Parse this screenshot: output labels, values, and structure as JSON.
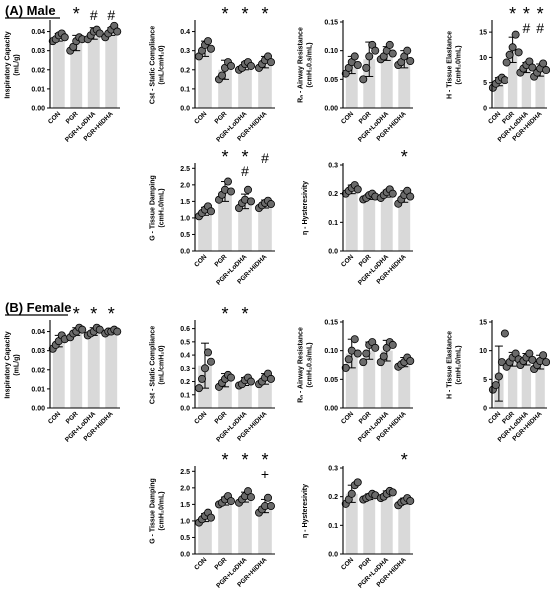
{
  "sections": [
    {
      "label": "(A) Male"
    },
    {
      "label": "(B) Female"
    }
  ],
  "style": {
    "bar_color": "#d9d9d9",
    "dot_color": "#6b6b6b",
    "marker_color": "#000000"
  },
  "chart_data": [
    {
      "type": "bar",
      "section": 0,
      "ylabel": "Inspiratory Capacity\n(mL/g)",
      "yticks": [
        "0.00",
        "0.01",
        "0.02",
        "0.03",
        "0.04"
      ],
      "ylim": [
        0,
        0.045
      ],
      "categories": [
        "CON",
        "PGR",
        "PGR+LoDHA",
        "PGR+HiDHA"
      ],
      "values": [
        0.037,
        0.034,
        0.039,
        0.04
      ],
      "errors": [
        0.002,
        0.004,
        0.003,
        0.002
      ],
      "points": [
        [
          0.035,
          0.036,
          0.038,
          0.039,
          0.037
        ],
        [
          0.03,
          0.032,
          0.035,
          0.037,
          0.036
        ],
        [
          0.036,
          0.038,
          0.04,
          0.041,
          0.039
        ],
        [
          0.037,
          0.039,
          0.041,
          0.043,
          0.04
        ]
      ],
      "markers": [
        "",
        "*",
        "#",
        "#"
      ]
    },
    {
      "type": "bar",
      "section": 0,
      "ylabel": "Cst - Static Compliance\n(mL/cmH₂0)",
      "yticks": [
        "0.0",
        "0.1",
        "0.2",
        "0.3",
        "0.4"
      ],
      "ylim": [
        0,
        0.45
      ],
      "categories": [
        "CON",
        "PGR",
        "PGR+LoDHA",
        "PGR+HiDHA"
      ],
      "values": [
        0.31,
        0.2,
        0.22,
        0.24
      ],
      "errors": [
        0.04,
        0.05,
        0.02,
        0.03
      ],
      "points": [
        [
          0.27,
          0.3,
          0.33,
          0.35,
          0.31
        ],
        [
          0.15,
          0.17,
          0.21,
          0.24,
          0.22
        ],
        [
          0.2,
          0.21,
          0.23,
          0.24,
          0.22
        ],
        [
          0.21,
          0.23,
          0.25,
          0.27,
          0.24
        ]
      ],
      "markers": [
        "",
        "*",
        "*",
        "*"
      ]
    },
    {
      "type": "bar",
      "section": 0,
      "ylabel": "Rₙ - Airway Resistance\n(cmH₂0.s/mL)",
      "yticks": [
        "0.00",
        "0.05",
        "0.10",
        "0.15"
      ],
      "ylim": [
        0,
        0.15
      ],
      "categories": [
        "CON",
        "PGR",
        "PGR+LoDHA",
        "PGR+HiDHA"
      ],
      "values": [
        0.075,
        0.085,
        0.095,
        0.085
      ],
      "errors": [
        0.015,
        0.03,
        0.012,
        0.015
      ],
      "points": [
        [
          0.06,
          0.07,
          0.08,
          0.09,
          0.075
        ],
        [
          0.05,
          0.07,
          0.09,
          0.11,
          0.1
        ],
        [
          0.085,
          0.09,
          0.1,
          0.11,
          0.095
        ],
        [
          0.075,
          0.08,
          0.09,
          0.1,
          0.082
        ]
      ],
      "markers": [
        "",
        "",
        "",
        ""
      ]
    },
    {
      "type": "bar",
      "section": 0,
      "ylabel": "H - Tissue Elastance\n(cmH₂0/mL)",
      "yticks": [
        "0",
        "5",
        "10",
        "15"
      ],
      "ylim": [
        0,
        17
      ],
      "categories": [
        "CON",
        "PGR",
        "PGR+LoDHA",
        "PGR+HiDHA"
      ],
      "values": [
        5.2,
        11.5,
        8.0,
        7.5
      ],
      "errors": [
        0.8,
        2.5,
        1.0,
        1.2
      ],
      "points": [
        [
          4.0,
          4.8,
          5.5,
          6.0,
          5.5
        ],
        [
          9.0,
          10.5,
          12.0,
          14.5,
          11.0
        ],
        [
          7.0,
          7.8,
          8.5,
          9.2,
          8.0
        ],
        [
          6.2,
          7.0,
          7.8,
          8.8,
          7.5
        ]
      ],
      "markers": [
        "",
        "*",
        "*\n#",
        "*\n#"
      ]
    },
    {
      "type": "bar",
      "section": 0,
      "ylabel": "G - Tissue Damping\n(cmH₂0/mL)",
      "yticks": [
        "0.0",
        "0.5",
        "1.0",
        "1.5",
        "2.0",
        "2.5"
      ],
      "ylim": [
        0,
        2.6
      ],
      "categories": [
        "CON",
        "PGR",
        "PGR+LoDHA",
        "PGR+HiDHA"
      ],
      "values": [
        1.2,
        1.8,
        1.5,
        1.42
      ],
      "errors": [
        0.12,
        0.3,
        0.22,
        0.12
      ],
      "points": [
        [
          1.05,
          1.15,
          1.25,
          1.35,
          1.2
        ],
        [
          1.55,
          1.7,
          1.85,
          2.1,
          1.8
        ],
        [
          1.3,
          1.45,
          1.55,
          1.85,
          1.5
        ],
        [
          1.3,
          1.38,
          1.45,
          1.52,
          1.42
        ]
      ],
      "markers": [
        "",
        "*",
        "*\n#",
        "#"
      ]
    },
    {
      "type": "bar",
      "section": 0,
      "ylabel": "η - Hysteresivity",
      "yticks": [
        "0.0",
        "0.1",
        "0.2",
        "0.3"
      ],
      "ylim": [
        0,
        0.3
      ],
      "categories": [
        "CON",
        "PGR",
        "PGR+LoDHA",
        "PGR+HiDHA"
      ],
      "values": [
        0.215,
        0.19,
        0.2,
        0.19
      ],
      "errors": [
        0.015,
        0.01,
        0.012,
        0.02
      ],
      "points": [
        [
          0.2,
          0.21,
          0.22,
          0.23,
          0.215
        ],
        [
          0.18,
          0.185,
          0.195,
          0.2,
          0.19
        ],
        [
          0.185,
          0.195,
          0.205,
          0.215,
          0.2
        ],
        [
          0.165,
          0.18,
          0.195,
          0.21,
          0.19
        ]
      ],
      "markers": [
        "",
        "",
        "",
        "*"
      ]
    },
    {
      "type": "bar",
      "section": 1,
      "ylabel": "Inspiratory Capacity\n(mL/g)",
      "yticks": [
        "0.00",
        "0.01",
        "0.02",
        "0.03",
        "0.04"
      ],
      "ylim": [
        0,
        0.045
      ],
      "categories": [
        "CON",
        "PGR",
        "PGR+LoDHA",
        "PGR+HiDHA"
      ],
      "values": [
        0.035,
        0.04,
        0.04,
        0.04
      ],
      "errors": [
        0.003,
        0.002,
        0.002,
        0.001
      ],
      "points": [
        [
          0.031,
          0.033,
          0.035,
          0.038,
          0.036
        ],
        [
          0.037,
          0.039,
          0.04,
          0.042,
          0.041
        ],
        [
          0.038,
          0.039,
          0.04,
          0.042,
          0.041
        ],
        [
          0.039,
          0.04,
          0.04,
          0.041,
          0.04
        ]
      ],
      "markers": [
        "",
        "*",
        "*",
        "*"
      ]
    },
    {
      "type": "bar",
      "section": 1,
      "ylabel": "Cst - Static Compliance\n(mL/cmH₂0)",
      "yticks": [
        "0.0",
        "0.1",
        "0.2",
        "0.3",
        "0.4",
        "0.5",
        "0.6"
      ],
      "ylim": [
        0,
        0.65
      ],
      "categories": [
        "CON",
        "PGR",
        "PGR+LoDHA",
        "PGR+HiDHA"
      ],
      "values": [
        0.32,
        0.21,
        0.2,
        0.22
      ],
      "errors": [
        0.17,
        0.05,
        0.03,
        0.04
      ],
      "points": [
        [
          0.15,
          0.22,
          0.3,
          0.42,
          0.35
        ],
        [
          0.16,
          0.19,
          0.22,
          0.25,
          0.23
        ],
        [
          0.17,
          0.18,
          0.21,
          0.23,
          0.2
        ],
        [
          0.18,
          0.2,
          0.23,
          0.26,
          0.22
        ]
      ],
      "markers": [
        "",
        "*",
        "*",
        ""
      ]
    },
    {
      "type": "bar",
      "section": 1,
      "ylabel": "Rₙ - Airway Resistance\n(cmH₂0.s/mL)",
      "yticks": [
        "0.00",
        "0.05",
        "0.10",
        "0.15"
      ],
      "ylim": [
        0,
        0.15
      ],
      "categories": [
        "CON",
        "PGR",
        "PGR+LoDHA",
        "PGR+HiDHA"
      ],
      "values": [
        0.095,
        0.1,
        0.1,
        0.08
      ],
      "errors": [
        0.025,
        0.015,
        0.018,
        0.008
      ],
      "points": [
        [
          0.07,
          0.085,
          0.1,
          0.12,
          0.095
        ],
        [
          0.08,
          0.095,
          0.11,
          0.115,
          0.105
        ],
        [
          0.08,
          0.09,
          0.105,
          0.115,
          0.11
        ],
        [
          0.072,
          0.076,
          0.08,
          0.088,
          0.082
        ]
      ],
      "markers": [
        "",
        "",
        "",
        ""
      ]
    },
    {
      "type": "bar",
      "section": 1,
      "ylabel": "H - Tissue Elastance\n(cmH₂0/mL)",
      "yticks": [
        "0",
        "5",
        "10",
        "15"
      ],
      "ylim": [
        0,
        15
      ],
      "categories": [
        "CON",
        "PGR",
        "PGR+LoDHA",
        "PGR+HiDHA"
      ],
      "values": [
        6.0,
        8.5,
        8.5,
        8.0
      ],
      "errors": [
        4.8,
        1.2,
        1.0,
        1.2
      ],
      "points": [
        [
          3.2,
          4.0,
          5.5,
          8.0,
          13.0
        ],
        [
          7.2,
          8.0,
          8.8,
          9.5,
          8.5
        ],
        [
          7.5,
          8.2,
          8.8,
          9.5,
          8.4
        ],
        [
          6.8,
          7.5,
          8.2,
          9.2,
          8.0
        ]
      ],
      "markers": [
        "",
        "",
        "",
        ""
      ]
    },
    {
      "type": "bar",
      "section": 1,
      "ylabel": "G - Tissue Damping\n(cmH₂0/mL)",
      "yticks": [
        "0.0",
        "0.5",
        "1.0",
        "1.5",
        "2.0",
        "2.5"
      ],
      "ylim": [
        0,
        2.6
      ],
      "categories": [
        "CON",
        "PGR",
        "PGR+LoDHA",
        "PGR+HiDHA"
      ],
      "values": [
        1.1,
        1.6,
        1.72,
        1.45
      ],
      "errors": [
        0.12,
        0.12,
        0.15,
        0.2
      ],
      "points": [
        [
          0.95,
          1.05,
          1.15,
          1.25,
          1.1
        ],
        [
          1.5,
          1.55,
          1.65,
          1.75,
          1.6
        ],
        [
          1.55,
          1.65,
          1.75,
          1.9,
          1.72
        ],
        [
          1.25,
          1.35,
          1.45,
          1.7,
          1.45
        ]
      ],
      "markers": [
        "",
        "*",
        "*",
        "*\n+"
      ]
    },
    {
      "type": "bar",
      "section": 1,
      "ylabel": "η - Hysteresivity",
      "yticks": [
        "0.0",
        "0.1",
        "0.2",
        "0.3"
      ],
      "ylim": [
        0,
        0.3
      ],
      "categories": [
        "CON",
        "PGR",
        "PGR+LoDHA",
        "PGR+HiDHA"
      ],
      "values": [
        0.21,
        0.2,
        0.21,
        0.185
      ],
      "errors": [
        0.03,
        0.01,
        0.01,
        0.01
      ],
      "points": [
        [
          0.175,
          0.19,
          0.21,
          0.24,
          0.25
        ],
        [
          0.19,
          0.195,
          0.2,
          0.21,
          0.205
        ],
        [
          0.195,
          0.2,
          0.21,
          0.22,
          0.215
        ],
        [
          0.17,
          0.18,
          0.185,
          0.195,
          0.185
        ]
      ],
      "markers": [
        "",
        "",
        "",
        "*"
      ]
    }
  ]
}
